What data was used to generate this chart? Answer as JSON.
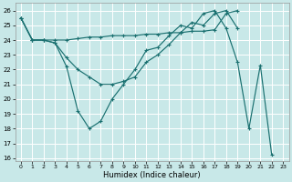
{
  "xlabel": "Humidex (Indice chaleur)",
  "xlim": [
    -0.5,
    23.5
  ],
  "ylim": [
    15.8,
    26.5
  ],
  "yticks": [
    16,
    17,
    18,
    19,
    20,
    21,
    22,
    23,
    24,
    25,
    26
  ],
  "xticks": [
    0,
    1,
    2,
    3,
    4,
    5,
    6,
    7,
    8,
    9,
    10,
    11,
    12,
    13,
    14,
    15,
    16,
    17,
    18,
    19,
    20,
    21,
    22,
    23
  ],
  "background_color": "#c8e8e8",
  "grid_color": "#aaaaaa",
  "line_color": "#1a7070",
  "series": [
    {
      "x": [
        0,
        1,
        2,
        3,
        4,
        5,
        6,
        7,
        8,
        9,
        10,
        11,
        12,
        13,
        14,
        15,
        16,
        17,
        18,
        19,
        20,
        21,
        22
      ],
      "y": [
        25.5,
        24.0,
        24.0,
        23.8,
        22.2,
        19.2,
        18.0,
        18.5,
        20.0,
        21.0,
        22.0,
        23.3,
        23.5,
        24.3,
        25.0,
        24.8,
        25.8,
        26.0,
        24.8,
        22.5,
        18.0,
        22.3,
        16.2
      ]
    },
    {
      "x": [
        0,
        1,
        2,
        3,
        4,
        5,
        6,
        7,
        8,
        9,
        10,
        11,
        12,
        13,
        14,
        15,
        16,
        17,
        18,
        19
      ],
      "y": [
        25.5,
        24.0,
        24.0,
        23.8,
        22.8,
        22.0,
        21.5,
        21.0,
        21.0,
        21.2,
        21.5,
        22.5,
        23.0,
        23.7,
        24.5,
        25.2,
        25.0,
        25.8,
        26.0,
        24.8
      ]
    },
    {
      "x": [
        0,
        1,
        2,
        3,
        4,
        5,
        6,
        7,
        8,
        9,
        10,
        11,
        12,
        13,
        14,
        15,
        16,
        17,
        18,
        19
      ],
      "y": [
        25.5,
        24.0,
        24.0,
        24.0,
        24.0,
        24.1,
        24.2,
        24.2,
        24.3,
        24.3,
        24.3,
        24.4,
        24.4,
        24.5,
        24.5,
        24.6,
        24.6,
        24.7,
        25.8,
        26.0
      ]
    }
  ]
}
